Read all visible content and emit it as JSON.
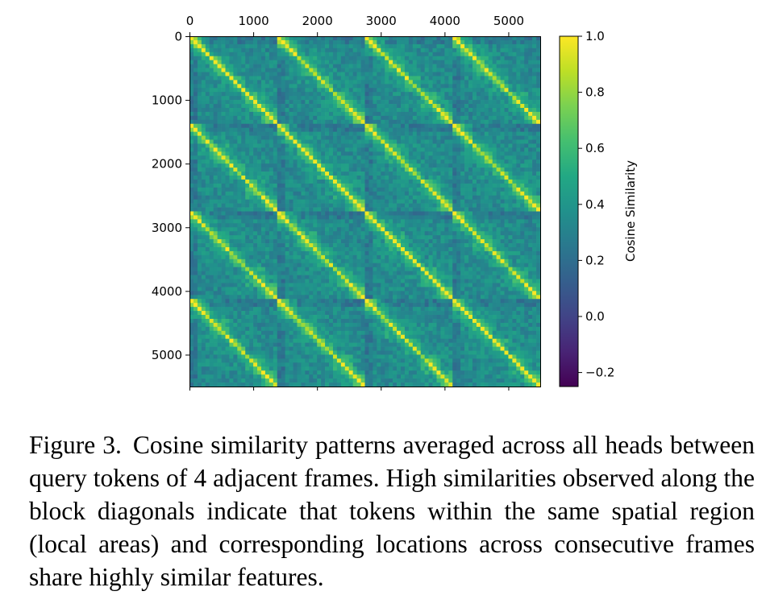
{
  "chart_data": {
    "type": "heatmap",
    "title": "",
    "xlabel": "",
    "ylabel": "",
    "xlim": [
      0,
      5500
    ],
    "ylim": [
      5500,
      0
    ],
    "x_ticks": [
      "0",
      "1000",
      "2000",
      "3000",
      "4000",
      "5000"
    ],
    "y_ticks": [
      "0",
      "1000",
      "2000",
      "3000",
      "4000",
      "5000"
    ],
    "grid": false,
    "n_frames": 4,
    "tokens_per_frame": 1375,
    "colormap": "viridis",
    "colorbar": {
      "label": "Cosine Similarity",
      "range": [
        -0.25,
        1.0
      ],
      "ticks": [
        "1.0",
        "0.8",
        "0.6",
        "0.4",
        "0.2",
        "0.0",
        "−0.2"
      ]
    },
    "pattern": "High similarities along the block diagonals: each frame-by-frame block shows a bright main diagonal and bright local sub-blocks; blocks repeat across the 4 adjacent frames."
  },
  "caption": {
    "label": "Figure 3.",
    "text": "Cosine similarity patterns averaged across all heads between query tokens of 4 adjacent frames. High similarities observed along the block diagonals indicate that tokens within the same spatial region (local areas) and corresponding locations across consecutive frames share highly similar features."
  },
  "colors": {
    "background": "#ffffff",
    "axis": "#000000"
  }
}
